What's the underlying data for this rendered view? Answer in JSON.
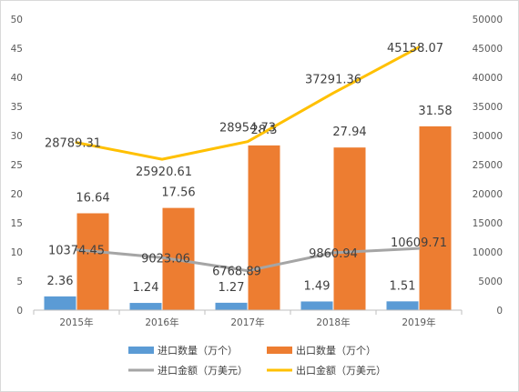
{
  "chart_data": {
    "type": "bar",
    "categories": [
      "2015年",
      "2016年",
      "2017年",
      "2018年",
      "2019年"
    ],
    "series": [
      {
        "name": "进口数量（万个）",
        "type": "bar",
        "axis": "left",
        "color": "#5b9bd5",
        "values": [
          2.36,
          1.24,
          1.27,
          1.49,
          1.51
        ],
        "labels": [
          "2.36",
          "1.24",
          "1.27",
          "1.49",
          "1.51"
        ]
      },
      {
        "name": "出口数量（万个）",
        "type": "bar",
        "axis": "left",
        "color": "#ed7d31",
        "values": [
          16.64,
          17.56,
          28.3,
          27.94,
          31.58
        ],
        "labels": [
          "16.64",
          "17.56",
          "28.3",
          "27.94",
          "31.58"
        ]
      },
      {
        "name": "进口金额（万美元）",
        "type": "line",
        "axis": "right",
        "color": "#a5a5a5",
        "values": [
          10374.45,
          9023.06,
          6768.89,
          9860.94,
          10609.71
        ],
        "labels": [
          "10374.45",
          "9023.06",
          "6768.89",
          "9860.94",
          "10609.71"
        ]
      },
      {
        "name": "出口金额（万美元）",
        "type": "line",
        "axis": "right",
        "color": "#ffc000",
        "values": [
          28789.31,
          25920.61,
          28954.73,
          37291.36,
          45158.07
        ],
        "labels": [
          "28789.31",
          "25920.61",
          "28954.73",
          "37291.36",
          "45158.07"
        ]
      }
    ],
    "y_left": {
      "min": 0,
      "max": 50,
      "ticks": [
        "0",
        "5",
        "10",
        "15",
        "20",
        "25",
        "30",
        "35",
        "40",
        "45",
        "50"
      ]
    },
    "y_right": {
      "min": 0,
      "max": 50000,
      "ticks": [
        "0",
        "5000",
        "10000",
        "15000",
        "20000",
        "25000",
        "30000",
        "35000",
        "40000",
        "45000",
        "50000"
      ]
    },
    "grid": false,
    "legend": "bottom"
  }
}
